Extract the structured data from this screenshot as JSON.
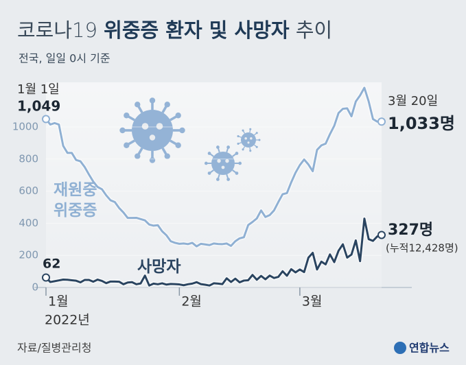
{
  "chart_data": {
    "type": "line",
    "title": [
      "코로나19",
      "위중증 환자 및 사망자",
      "추이"
    ],
    "subtitle": "전국, 일일 0시 기준",
    "source": "자료/질병관리청",
    "logo": "연합뉴스",
    "year_label": "2022년",
    "date_labels": [
      "1월 1일",
      "3월 20일"
    ],
    "cumulative_note": "(누적12,428명)",
    "x": [
      1,
      2,
      3,
      4,
      5,
      6,
      7,
      8,
      9,
      10,
      11,
      12,
      13,
      14,
      15,
      16,
      17,
      18,
      19,
      20,
      21,
      22,
      23,
      24,
      25,
      26,
      27,
      28,
      29,
      30,
      31,
      32,
      33,
      34,
      35,
      36,
      37,
      38,
      39,
      40,
      41,
      42,
      43,
      44,
      45,
      46,
      47,
      48,
      49,
      50,
      51,
      52,
      53,
      54,
      55,
      56,
      57,
      58,
      59,
      60,
      61,
      62,
      63,
      64,
      65,
      66,
      67,
      68,
      69,
      70,
      71,
      72,
      73,
      74,
      75,
      76,
      77,
      78,
      79
    ],
    "xlim": [
      1,
      79
    ],
    "xticks": [
      {
        "value": 1,
        "label": "1월"
      },
      {
        "value": 32,
        "label": "2월"
      },
      {
        "value": 60,
        "label": "3월"
      }
    ],
    "ylim": [
      0,
      1250
    ],
    "yticks": [
      0,
      200,
      400,
      600,
      800,
      1000
    ],
    "series": [
      {
        "name": "재원중 위중증",
        "color": "#8fb0d3",
        "values": [
          1049,
          1015,
          1024,
          1015,
          882,
          838,
          838,
          794,
          786,
          750,
          703,
          659,
          626,
          612,
          574,
          543,
          532,
          495,
          467,
          433,
          433,
          434,
          426,
          418,
          392,
          385,
          388,
          350,
          325,
          288,
          278,
          272,
          274,
          270,
          278,
          256,
          272,
          268,
          264,
          274,
          271,
          270,
          274,
          259,
          288,
          306,
          313,
          389,
          408,
          430,
          480,
          439,
          451,
          480,
          532,
          581,
          588,
          655,
          715,
          762,
          797,
          766,
          724,
          857,
          885,
          896,
          955,
          1007,
          1087,
          1113,
          1116,
          1066,
          1158,
          1196,
          1244,
          1159,
          1049,
          1033,
          1033
        ],
        "value_labels": [
          "1,049",
          null,
          null,
          null,
          null,
          null,
          null,
          null,
          null,
          null,
          null,
          null,
          null,
          null,
          null,
          null,
          null,
          null,
          null,
          null,
          null,
          null,
          null,
          null,
          null,
          null,
          null,
          null,
          null,
          null,
          null,
          null,
          null,
          null,
          null,
          null,
          null,
          null,
          null,
          null,
          null,
          null,
          null,
          null,
          null,
          null,
          null,
          null,
          null,
          null,
          null,
          null,
          null,
          null,
          null,
          null,
          null,
          null,
          null,
          null,
          null,
          null,
          null,
          null,
          null,
          null,
          null,
          null,
          null,
          null,
          null,
          null,
          null,
          null,
          null,
          null,
          null,
          null,
          "1,033명"
        ]
      },
      {
        "name": "사망자",
        "color": "#2a4460",
        "values": [
          62,
          34,
          39,
          44,
          49,
          48,
          45,
          42,
          32,
          47,
          47,
          36,
          49,
          41,
          27,
          37,
          37,
          36,
          20,
          31,
          33,
          20,
          25,
          74,
          12,
          24,
          20,
          26,
          18,
          22,
          21,
          19,
          14,
          20,
          24,
          33,
          21,
          17,
          12,
          26,
          24,
          21,
          57,
          34,
          55,
          32,
          43,
          45,
          78,
          48,
          72,
          51,
          74,
          59,
          66,
          101,
          73,
          114,
          94,
          112,
          96,
          186,
          216,
          112,
          161,
          144,
          206,
          158,
          229,
          269,
          186,
          205,
          293,
          164,
          429,
          301,
          290,
          318,
          327
        ],
        "value_labels": [
          "62",
          null,
          null,
          null,
          null,
          null,
          null,
          null,
          null,
          null,
          null,
          null,
          null,
          null,
          null,
          null,
          null,
          null,
          null,
          null,
          null,
          null,
          null,
          null,
          null,
          null,
          null,
          null,
          null,
          null,
          null,
          null,
          null,
          null,
          null,
          null,
          null,
          null,
          null,
          null,
          null,
          null,
          null,
          null,
          null,
          null,
          null,
          null,
          null,
          null,
          null,
          null,
          null,
          null,
          null,
          null,
          null,
          null,
          null,
          null,
          null,
          null,
          null,
          null,
          null,
          null,
          null,
          null,
          null,
          null,
          null,
          null,
          null,
          null,
          null,
          null,
          null,
          null,
          "327명"
        ]
      }
    ]
  }
}
